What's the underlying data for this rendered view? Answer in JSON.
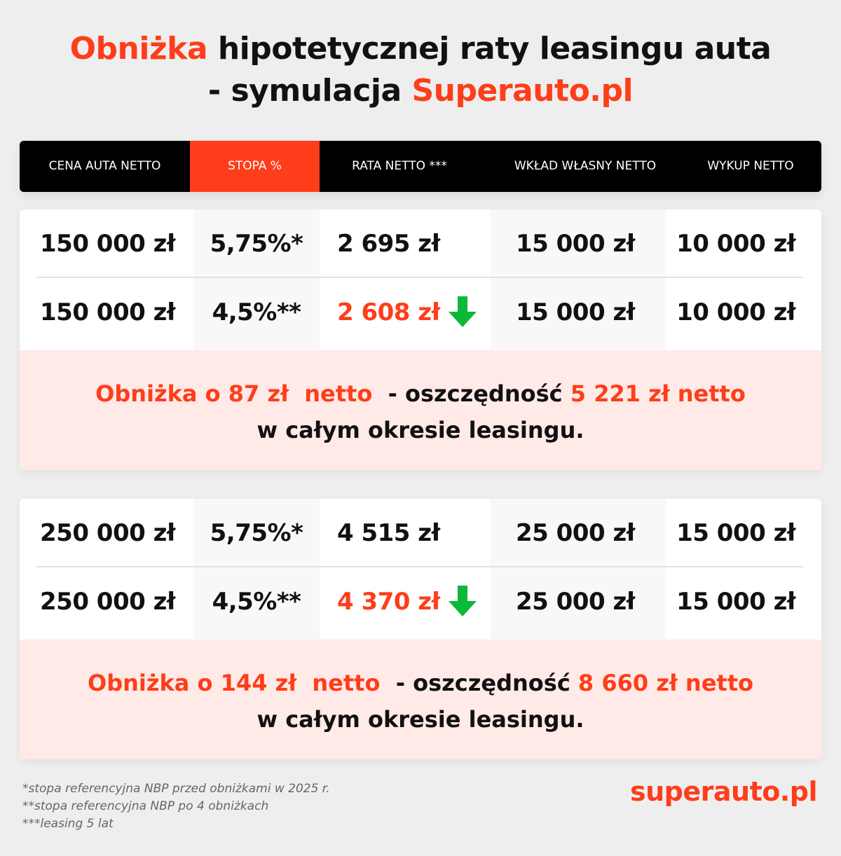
{
  "title": {
    "line1_accent": "Obniżka",
    "line1_rest": " hipotetycznej raty leasingu auta",
    "line2_prefix": "- symulacja ",
    "line2_accent": "Superauto.pl"
  },
  "header": {
    "columns": [
      "CENA AUTA NETTO",
      "STOPA %",
      "RATA NETTO ***",
      "WKŁAD WŁASNY NETTO",
      "WYKUP NETTO"
    ],
    "active_column": "STOPA %"
  },
  "cards": [
    {
      "rows": [
        {
          "price": "150 000 zł",
          "rate": "5,75%*",
          "installment": "2 695 zł",
          "down_payment": "15 000 zł",
          "buyout": "10 000 zł"
        },
        {
          "price": "150 000 zł",
          "rate": "4,5%**",
          "installment": "2 608 zł",
          "down_payment": "15 000 zł",
          "buyout": "10 000 zł",
          "indicator": "arrow-down-icon"
        }
      ],
      "summary": {
        "reduction": "Obniżka o 87 zł  netto",
        "mid": "  - oszczędność ",
        "savings": "5 221 zł netto",
        "line2": "w całym okresie leasingu."
      }
    },
    {
      "rows": [
        {
          "price": "250 000 zł",
          "rate": "5,75%*",
          "installment": "4 515 zł",
          "down_payment": "25 000 zł",
          "buyout": "15 000 zł"
        },
        {
          "price": "250 000 zł",
          "rate": "4,5%**",
          "installment": "4 370 zł",
          "down_payment": "25 000 zł",
          "buyout": "15 000 zł",
          "indicator": "arrow-down-icon"
        }
      ],
      "summary": {
        "reduction": "Obniżka o 144 zł  netto",
        "mid": "  - oszczędność ",
        "savings": "8 660 zł netto",
        "line2": "w całym okresie leasingu."
      }
    }
  ],
  "footnotes": [
    "*stopa referencyjna NBP przed obniżkami w 2025 r.",
    "**stopa referencyjna NBP po 4  obniżkach",
    "***leasing 5 lat"
  ],
  "logo": "superauto.pl",
  "colors": {
    "accent": "#ff3d1a",
    "arrow": "#0cb83a",
    "summary_bg": "#ffeae7",
    "header_bg": "#000000"
  }
}
